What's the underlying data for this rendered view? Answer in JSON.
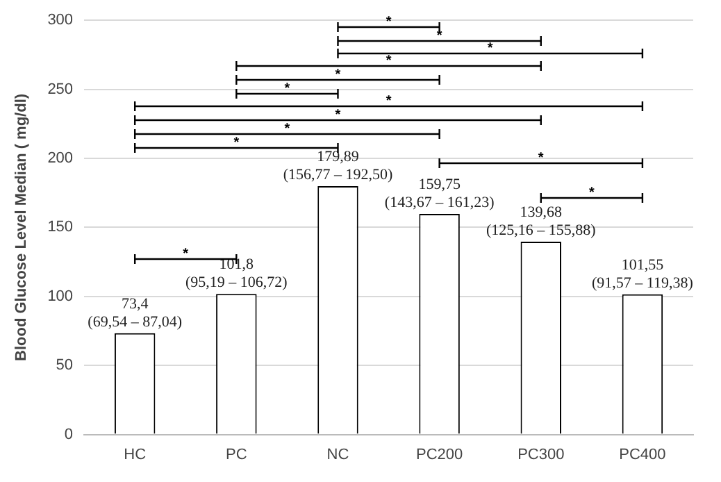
{
  "chart_data": {
    "type": "bar",
    "ylabel": "Blood Glucose Level Median ( mg/dl)",
    "categories": [
      "HC",
      "PC",
      "NC",
      "PC200",
      "PC300",
      "PC400"
    ],
    "values": [
      73.4,
      101.8,
      179.89,
      159.75,
      139.68,
      101.55
    ],
    "value_labels": [
      "73,4\n(69,54 – 87,04)",
      "101,8\n(95,19 – 106,72)",
      "179,89\n(156,77 – 192,50)",
      "159,75\n(143,67 – 161,23)",
      "139,68\n(125,16 – 155,88)",
      "101,55\n(91,57 – 119,38)"
    ],
    "color": "#ffffff",
    "ylim": [
      0,
      300
    ],
    "yticks": [
      0,
      50,
      100,
      150,
      200,
      250,
      300
    ],
    "grid": "y",
    "annotations": [
      "*",
      "*",
      "*",
      "*",
      "*",
      "*",
      "*",
      "*",
      "*",
      "*",
      "*",
      "*",
      "*"
    ]
  }
}
